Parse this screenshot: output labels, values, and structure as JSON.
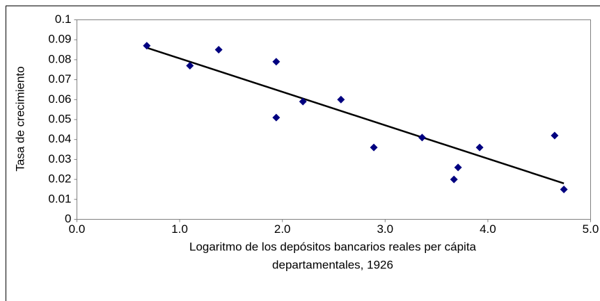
{
  "chart_data": {
    "type": "scatter",
    "ylabel": "Tasa de crecimiento",
    "xlabel": [
      "Logaritmo de los depósitos bancarios reales per cápita",
      "departamentales, 1926"
    ],
    "x": [
      0.68,
      1.1,
      1.38,
      1.94,
      1.94,
      2.2,
      2.57,
      2.89,
      3.36,
      3.67,
      3.71,
      3.92,
      4.65,
      4.74
    ],
    "values": [
      0.087,
      0.077,
      0.085,
      0.079,
      0.051,
      0.059,
      0.06,
      0.036,
      0.041,
      0.02,
      0.026,
      0.036,
      0.042,
      0.015
    ],
    "color": "#000080",
    "trendline": {
      "x": [
        0.68,
        4.74
      ],
      "values": [
        0.086,
        0.018
      ],
      "color": "#000000"
    },
    "xlim": [
      0,
      5
    ],
    "xticks": [
      {
        "value": 0,
        "label": "0.0"
      },
      {
        "value": 1,
        "label": "1.0"
      },
      {
        "value": 2,
        "label": "2.0"
      },
      {
        "value": 3,
        "label": "3.0"
      },
      {
        "value": 4,
        "label": "4.0"
      },
      {
        "value": 5,
        "label": "5.0"
      }
    ],
    "ylim": [
      0,
      0.1
    ],
    "yticks": [
      0,
      0.01,
      0.02,
      0.03,
      0.04,
      0.05,
      0.06,
      0.07,
      0.08,
      0.09,
      0.1
    ],
    "grid": false
  }
}
